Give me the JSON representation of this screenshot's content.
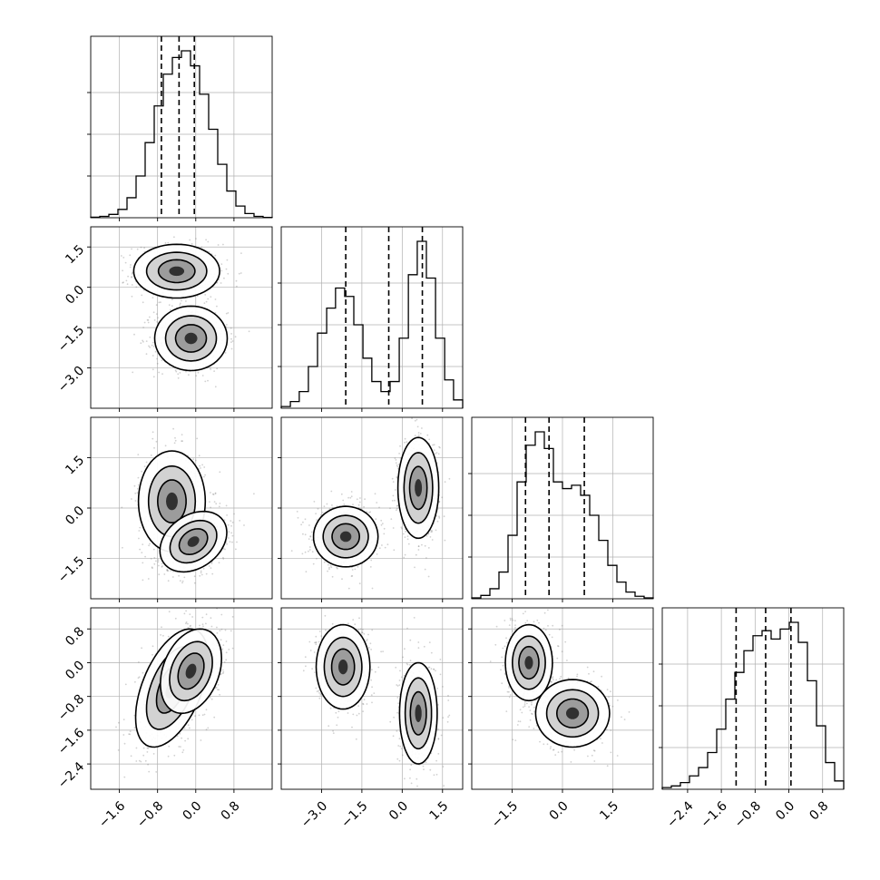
{
  "chart_data": {
    "type": "corner",
    "n_params": 4,
    "grid": true,
    "colors": {
      "line": "#000000",
      "grid": "#b0b0b0",
      "points": "#7a7a7a",
      "background": "#ffffff"
    },
    "params": [
      {
        "index": 0,
        "range": [
          -2.2,
          1.6
        ],
        "ticks": [
          -1.6,
          -0.8,
          0.0,
          0.8
        ],
        "tick_labels": [
          "−1.6",
          "−0.8",
          "0.0",
          "0.8"
        ],
        "quantiles": [
          -0.72,
          -0.35,
          -0.03
        ]
      },
      {
        "index": 1,
        "range": [
          -4.5,
          2.25
        ],
        "ticks": [
          -3.0,
          -1.5,
          0.0,
          1.5
        ],
        "tick_labels": [
          "−3.0",
          "−1.5",
          "0.0",
          "1.5"
        ],
        "quantiles": [
          -2.1,
          -0.5,
          0.75
        ]
      },
      {
        "index": 2,
        "range": [
          -2.7,
          2.7
        ],
        "ticks": [
          -1.5,
          0.0,
          1.5
        ],
        "tick_labels": [
          "−1.5",
          "0.0",
          "1.5"
        ],
        "quantiles": [
          -1.1,
          -0.4,
          0.65
        ]
      },
      {
        "index": 3,
        "range": [
          -3.0,
          1.3
        ],
        "ticks": [
          -2.4,
          -1.6,
          -0.8,
          0.0,
          0.8
        ],
        "tick_labels": [
          "−2.4",
          "−1.6",
          "−0.8",
          "0.0",
          "0.8"
        ],
        "quantiles": [
          -1.25,
          -0.55,
          0.05
        ]
      }
    ],
    "histograms": [
      {
        "param": 0,
        "bin_edges": [
          -2.2,
          -2.01,
          -1.82,
          -1.63,
          -1.44,
          -1.25,
          -1.06,
          -0.87,
          -0.68,
          -0.49,
          -0.3,
          -0.11,
          0.08,
          0.27,
          0.46,
          0.65,
          0.84,
          1.03,
          1.22,
          1.41,
          1.6
        ],
        "heights": [
          0.003,
          0.008,
          0.02,
          0.05,
          0.12,
          0.25,
          0.45,
          0.67,
          0.86,
          0.96,
          1.0,
          0.91,
          0.74,
          0.53,
          0.32,
          0.16,
          0.07,
          0.025,
          0.008,
          0.002
        ]
      },
      {
        "param": 1,
        "bin_edges": [
          -4.5,
          -4.16,
          -3.83,
          -3.49,
          -3.15,
          -2.81,
          -2.48,
          -2.14,
          -1.8,
          -1.46,
          -1.13,
          -0.79,
          -0.45,
          -0.11,
          0.23,
          0.56,
          0.9,
          1.24,
          1.58,
          1.91,
          2.25
        ],
        "heights": [
          0.01,
          0.04,
          0.1,
          0.25,
          0.45,
          0.6,
          0.72,
          0.67,
          0.5,
          0.3,
          0.16,
          0.1,
          0.16,
          0.42,
          0.8,
          1.0,
          0.78,
          0.42,
          0.17,
          0.05
        ]
      },
      {
        "param": 2,
        "bin_edges": [
          -2.7,
          -2.43,
          -2.16,
          -1.89,
          -1.62,
          -1.35,
          -1.08,
          -0.81,
          -0.54,
          -0.27,
          0.0,
          0.27,
          0.54,
          0.81,
          1.08,
          1.35,
          1.62,
          1.89,
          2.16,
          2.43,
          2.7
        ],
        "heights": [
          0.005,
          0.02,
          0.06,
          0.16,
          0.38,
          0.7,
          0.92,
          1.0,
          0.9,
          0.7,
          0.66,
          0.68,
          0.62,
          0.5,
          0.35,
          0.2,
          0.1,
          0.04,
          0.015,
          0.005
        ]
      },
      {
        "param": 3,
        "bin_edges": [
          -3.0,
          -2.785,
          -2.57,
          -2.355,
          -2.14,
          -1.925,
          -1.71,
          -1.495,
          -1.28,
          -1.065,
          -0.85,
          -0.635,
          -0.42,
          -0.205,
          0.01,
          0.225,
          0.44,
          0.655,
          0.87,
          1.085,
          1.3
        ],
        "heights": [
          0.01,
          0.02,
          0.04,
          0.08,
          0.13,
          0.22,
          0.36,
          0.54,
          0.7,
          0.83,
          0.92,
          0.95,
          0.9,
          0.96,
          1.0,
          0.88,
          0.65,
          0.38,
          0.16,
          0.05
        ]
      }
    ],
    "pairs": [
      {
        "x_param": 0,
        "y_param": 1,
        "clusters": [
          {
            "cx": -0.4,
            "cy": 0.6,
            "sx": 0.45,
            "sy": 0.5,
            "rho": 0.0
          },
          {
            "cx": -0.1,
            "cy": -1.9,
            "sx": 0.38,
            "sy": 0.6,
            "rho": 0.0
          }
        ]
      },
      {
        "x_param": 0,
        "y_param": 2,
        "clusters": [
          {
            "cx": -0.5,
            "cy": 0.2,
            "sx": 0.35,
            "sy": 0.75,
            "rho": 0.0
          },
          {
            "cx": -0.05,
            "cy": -1.0,
            "sx": 0.35,
            "sy": 0.45,
            "rho": 0.3
          }
        ]
      },
      {
        "x_param": 1,
        "y_param": 2,
        "clusters": [
          {
            "cx": -2.1,
            "cy": -0.85,
            "sx": 0.6,
            "sy": 0.45,
            "rho": 0.0
          },
          {
            "cx": 0.6,
            "cy": 0.6,
            "sx": 0.38,
            "sy": 0.75,
            "rho": 0.0
          }
        ]
      },
      {
        "x_param": 0,
        "y_param": 3,
        "clusters": [
          {
            "cx": -0.5,
            "cy": -0.6,
            "sx": 0.38,
            "sy": 0.7,
            "rho": 0.5
          },
          {
            "cx": -0.1,
            "cy": -0.2,
            "sx": 0.32,
            "sy": 0.5,
            "rho": 0.3
          }
        ]
      },
      {
        "x_param": 1,
        "y_param": 3,
        "clusters": [
          {
            "cx": -2.2,
            "cy": -0.1,
            "sx": 0.5,
            "sy": 0.5,
            "rho": 0.0
          },
          {
            "cx": 0.6,
            "cy": -1.2,
            "sx": 0.35,
            "sy": 0.6,
            "rho": 0.0
          }
        ]
      },
      {
        "x_param": 2,
        "y_param": 3,
        "clusters": [
          {
            "cx": -1.0,
            "cy": 0.0,
            "sx": 0.35,
            "sy": 0.45,
            "rho": 0.0
          },
          {
            "cx": 0.3,
            "cy": -1.2,
            "sx": 0.55,
            "sy": 0.4,
            "rho": 0.0
          }
        ]
      }
    ]
  }
}
